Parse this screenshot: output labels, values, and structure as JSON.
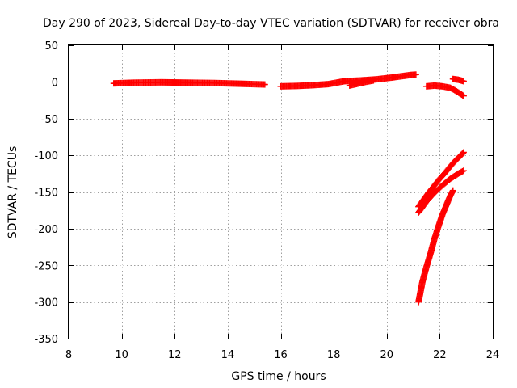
{
  "chart_data": {
    "type": "scatter",
    "title": "Day 290 of 2023, Sidereal Day-to-day VTEC variation (SDTVAR) for receiver obra",
    "xlabel": "GPS time / hours",
    "ylabel": "SDTVAR / TECUs",
    "xlim": [
      8,
      24
    ],
    "ylim": [
      -350,
      50
    ],
    "xticks": [
      8,
      10,
      12,
      14,
      16,
      18,
      20,
      22,
      24
    ],
    "yticks": [
      -350,
      -300,
      -250,
      -200,
      -150,
      -100,
      -50,
      0,
      50
    ],
    "grid": true,
    "legend": "none",
    "marker": "plus",
    "series": [
      {
        "x": [
          9.7,
          10.5,
          11.5,
          12.5,
          13.5,
          14.5,
          15.4
        ],
        "y": [
          -2,
          -1,
          -0.5,
          -1,
          -1.5,
          -2.5,
          -3.5
        ]
      },
      {
        "x": [
          16.0,
          16.6,
          17.2,
          17.8,
          18.4,
          19.0,
          19.6,
          20.2,
          20.6,
          20.9,
          21.1
        ],
        "y": [
          -6,
          -5.5,
          -4.5,
          -3,
          1,
          2,
          3.5,
          6,
          8,
          9.5,
          10
        ]
      },
      {
        "x": [
          18.6,
          18.9,
          19.2,
          19.5
        ],
        "y": [
          -5,
          -2.5,
          0,
          2
        ]
      },
      {
        "x": [
          21.5,
          21.8,
          22.1,
          22.4,
          22.6,
          22.9
        ],
        "y": [
          -6,
          -5,
          -6,
          -8,
          -12,
          -19
        ]
      },
      {
        "x": [
          22.5,
          22.7,
          22.9
        ],
        "y": [
          4,
          3,
          1
        ]
      },
      {
        "x": [
          21.2,
          21.4,
          21.6,
          21.8,
          22.0,
          22.2,
          22.4,
          22.6,
          22.8,
          22.9
        ],
        "y": [
          -170,
          -160,
          -150,
          -141,
          -132,
          -124,
          -115,
          -107,
          -100,
          -96
        ]
      },
      {
        "x": [
          21.2,
          21.5,
          21.8,
          22.1,
          22.4,
          22.7,
          22.9
        ],
        "y": [
          -178,
          -163,
          -151,
          -141,
          -132,
          -125,
          -121
        ]
      },
      {
        "x": [
          21.2,
          21.35,
          21.5,
          21.65,
          21.8,
          21.95,
          22.1,
          22.25,
          22.4,
          22.5
        ],
        "y": [
          -300,
          -272,
          -252,
          -234,
          -214,
          -197,
          -181,
          -168,
          -155,
          -148
        ]
      }
    ]
  }
}
